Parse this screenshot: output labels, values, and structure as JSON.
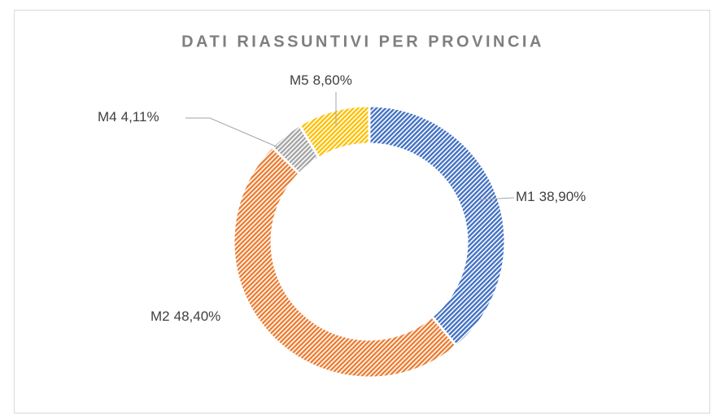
{
  "chart_data": {
    "type": "donut",
    "title": "DATI RIASSUNTIVI PER PROVINCIA",
    "categories": [
      "M1",
      "M2",
      "M4",
      "M5"
    ],
    "values": [
      38.9,
      48.4,
      4.11,
      8.6
    ],
    "value_labels": [
      "38,90%",
      "48,40%",
      "4,11%",
      "8,60%"
    ],
    "colors": [
      "#4472c4",
      "#ed7d31",
      "#a5a5a5",
      "#ffc000"
    ]
  }
}
